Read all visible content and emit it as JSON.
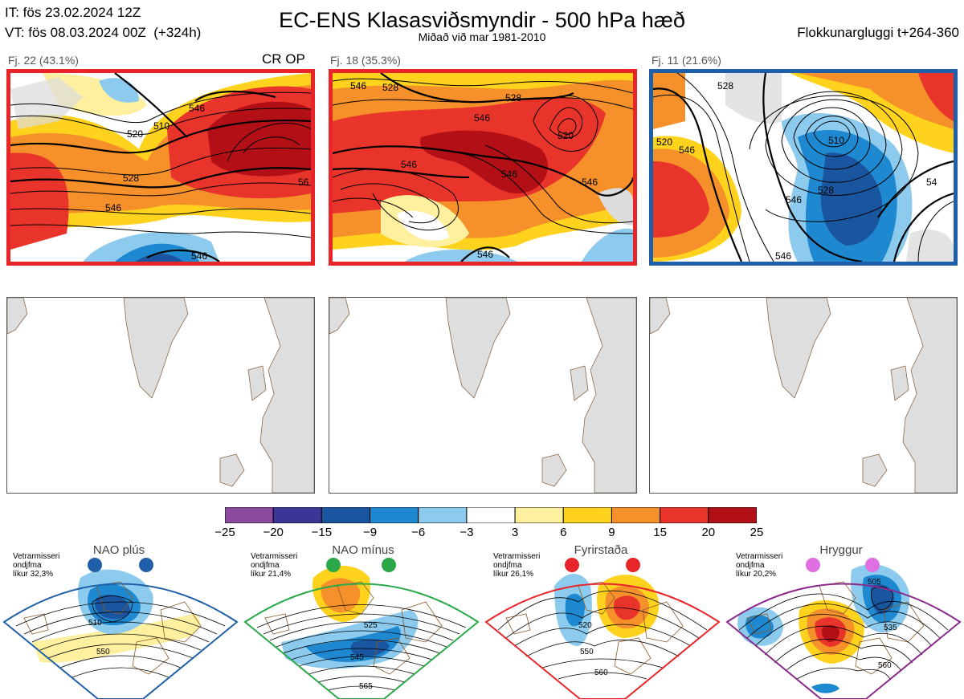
{
  "header": {
    "init_time": "IT: fös 23.02.2024 12Z",
    "valid_time": "VT: fös 08.03.2024 00Z",
    "lead": "(+324h)",
    "title": "EC-ENS Klasasviðsmyndir - 500 hPa hæð",
    "subtitle": "Miðað við mar 1981-2010",
    "window": "Flokkunargluggi t+264-360"
  },
  "clusters": [
    {
      "label": "Fj. 22 (43.1%)",
      "frame_color": "#e8262a",
      "contour_labels": [
        "528",
        "546",
        "520",
        "510",
        "546",
        "546",
        "56"
      ]
    },
    {
      "label": "Fj. 18 (35.3%)",
      "frame_color": "#e8262a",
      "contour_labels": [
        "546",
        "528",
        "546",
        "520",
        "546",
        "546",
        "546",
        "546"
      ]
    },
    {
      "label": "Fj. 11 (21.6%)",
      "frame_color": "#1f5fa8",
      "contour_labels": [
        "520",
        "528",
        "546",
        "510",
        "528",
        "546",
        "546",
        "54"
      ]
    }
  ],
  "crop_label": "CR OP",
  "colorbar": {
    "ticks": [
      "−25",
      "−20",
      "−15",
      "−9",
      "−6",
      "−3",
      "3",
      "6",
      "9",
      "15",
      "20",
      "25"
    ],
    "colors": [
      "#8c4a9e",
      "#3b3596",
      "#1a56a0",
      "#1e88d0",
      "#8ccbee",
      "#ffffff",
      "#fff0a0",
      "#ffd21e",
      "#f5902a",
      "#e8342a",
      "#b21016"
    ]
  },
  "regimes": [
    {
      "name": "NAO plús",
      "note": "Vetrarmisseri\nondjfma\nlíkur 32,3%",
      "color": "#1f5fa8",
      "dot_color": "#1f5fa8",
      "labels": [
        "510",
        "550"
      ]
    },
    {
      "name": "NAO mínus",
      "note": "Vetrarmisseri\nondjfma\nlíkur 21,4%",
      "color": "#2aa84a",
      "dot_color": "#2aa84a",
      "labels": [
        "525",
        "545",
        "565"
      ]
    },
    {
      "name": "Fyrirstaða",
      "note": "Vetrarmisseri\nondjfma\nlíkur 26,1%",
      "color": "#e8262a",
      "dot_color": "#e8262a",
      "labels": [
        "520",
        "550",
        "560"
      ]
    },
    {
      "name": "Hryggur",
      "note": "Vetrarmisseri\nondjfma\nlíkur 20,2%",
      "color": "#8a2a8a",
      "dot_color": "#e070e0",
      "labels": [
        "505",
        "535",
        "560"
      ]
    }
  ]
}
